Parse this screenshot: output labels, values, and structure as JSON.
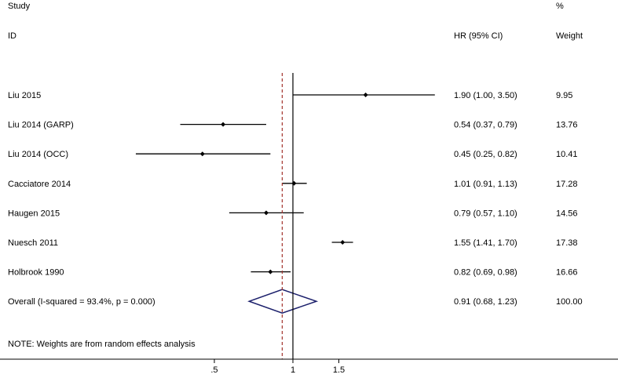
{
  "headers": {
    "study_top": "Study",
    "study_bottom": "ID",
    "effect": "HR (95% CI)",
    "weight_top": "%",
    "weight_bottom": "Weight"
  },
  "note": "NOTE: Weights are from random effects analysis",
  "colors": {
    "ci_line": "#000000",
    "point": "#000000",
    "diamond": "#1b1f6b",
    "overall_line": "#a3342e",
    "null_line": "#000000"
  },
  "chart_data": {
    "type": "forest",
    "scale": "log",
    "null_value": 1,
    "overall_value": 0.91,
    "xlim": [
      0.33,
      3.5
    ],
    "x_ticks": [
      {
        "value": 0.5,
        "label": ".5"
      },
      {
        "value": 1,
        "label": "1"
      },
      {
        "value": 1.5,
        "label": "1.5"
      }
    ],
    "studies": [
      {
        "label": "Liu 2015",
        "hr": 1.9,
        "lo": 1.0,
        "hi": 3.5,
        "ci_text": "1.90 (1.00, 3.50)",
        "weight": "9.95"
      },
      {
        "label": "Liu 2014 (GARP)",
        "hr": 0.54,
        "lo": 0.37,
        "hi": 0.79,
        "ci_text": "0.54 (0.37, 0.79)",
        "weight": "13.76"
      },
      {
        "label": "Liu 2014 (OCC)",
        "hr": 0.45,
        "lo": 0.25,
        "hi": 0.82,
        "ci_text": "0.45 (0.25, 0.82)",
        "weight": "10.41"
      },
      {
        "label": "Cacciatore 2014",
        "hr": 1.01,
        "lo": 0.91,
        "hi": 1.13,
        "ci_text": "1.01 (0.91, 1.13)",
        "weight": "17.28"
      },
      {
        "label": "Haugen 2015",
        "hr": 0.79,
        "lo": 0.57,
        "hi": 1.1,
        "ci_text": "0.79 (0.57, 1.10)",
        "weight": "14.56"
      },
      {
        "label": "Nuesch 2011",
        "hr": 1.55,
        "lo": 1.41,
        "hi": 1.7,
        "ci_text": "1.55 (1.41, 1.70)",
        "weight": "17.38"
      },
      {
        "label": "Holbrook 1990",
        "hr": 0.82,
        "lo": 0.69,
        "hi": 0.98,
        "ci_text": "0.82 (0.69, 0.98)",
        "weight": "16.66"
      }
    ],
    "overall": {
      "label": "Overall  (I-squared = 93.4%, p = 0.000)",
      "hr": 0.91,
      "lo": 0.68,
      "hi": 1.23,
      "ci_text": "0.91 (0.68, 1.23)",
      "weight": "100.00"
    }
  }
}
